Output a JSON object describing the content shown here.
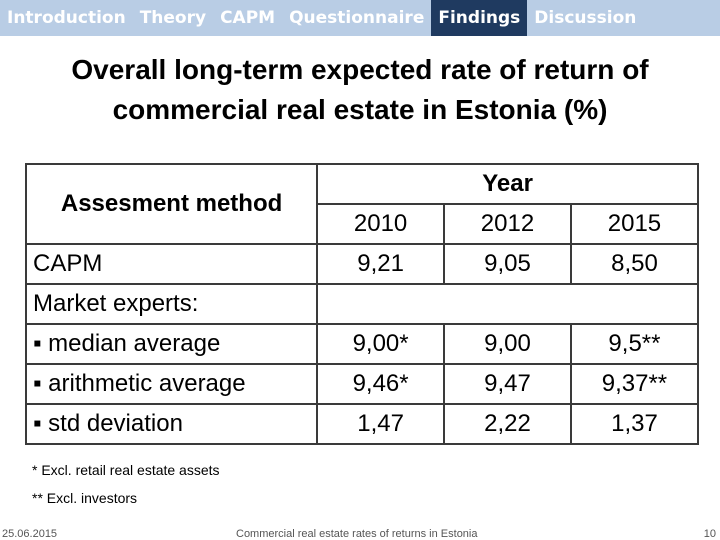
{
  "nav": {
    "items": [
      "Introduction",
      "Theory",
      "CAPM",
      "Questionnaire",
      "Findings",
      "Discussion"
    ],
    "active": 4
  },
  "title": "Overall long-term expected rate of return of commercial real estate in Estonia (%)",
  "table": {
    "header": {
      "method": "Assesment method",
      "year": "Year",
      "years": [
        "2010",
        "2012",
        "2015"
      ]
    },
    "rows": [
      [
        "CAPM",
        "9,21",
        "9,05",
        "8,50"
      ],
      [
        "Market experts:"
      ],
      [
        "▪ median average",
        "9,00*",
        "9,00",
        "9,5**"
      ],
      [
        "▪ arithmetic average",
        "9,46*",
        "9,47",
        "9,37**"
      ],
      [
        "▪ std deviation",
        "1,47",
        "2,22",
        "1,37"
      ]
    ]
  },
  "footnotes": [
    "* Excl. retail real estate assets",
    "** Excl. investors"
  ],
  "footer": {
    "date": "25.06.2015",
    "caption": "Commercial real estate rates of returns in Estonia",
    "page": "10"
  }
}
